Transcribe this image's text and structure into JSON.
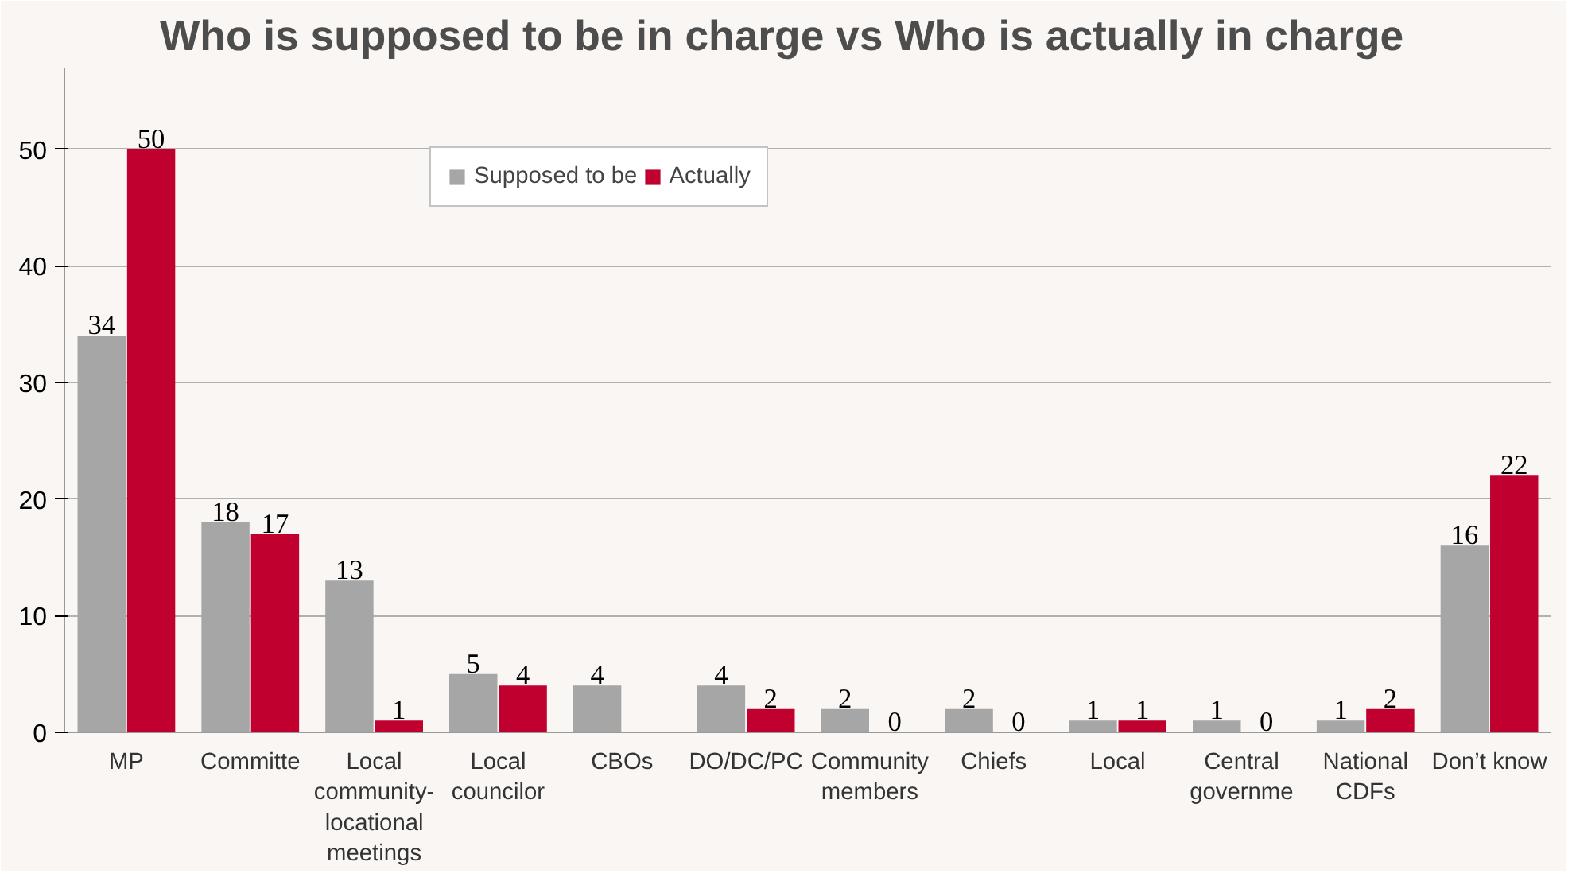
{
  "chart_data": {
    "type": "bar",
    "title": "Who is supposed to be in charge vs Who is actually in charge",
    "categories": [
      "MP",
      "Committe",
      "Local community-locational meetings",
      "Local councilor",
      "CBOs",
      "DO/DC/PC",
      "Community members",
      "Chiefs",
      "Local",
      "Central governme",
      "National CDFs",
      "Don’t know"
    ],
    "series": [
      {
        "name": "Supposed to be",
        "color": "#a6a6a6",
        "values": [
          34,
          18,
          13,
          5,
          4,
          4,
          2,
          2,
          1,
          1,
          1,
          16
        ]
      },
      {
        "name": "Actually",
        "color": "#c0002f",
        "values": [
          50,
          17,
          1,
          4,
          null,
          2,
          0,
          0,
          1,
          0,
          2,
          22
        ]
      }
    ],
    "ylim": [
      0,
      57
    ],
    "yticks": [
      0,
      10,
      20,
      30,
      40,
      50
    ],
    "grid": "y",
    "legend": "top",
    "data_labels": true
  }
}
